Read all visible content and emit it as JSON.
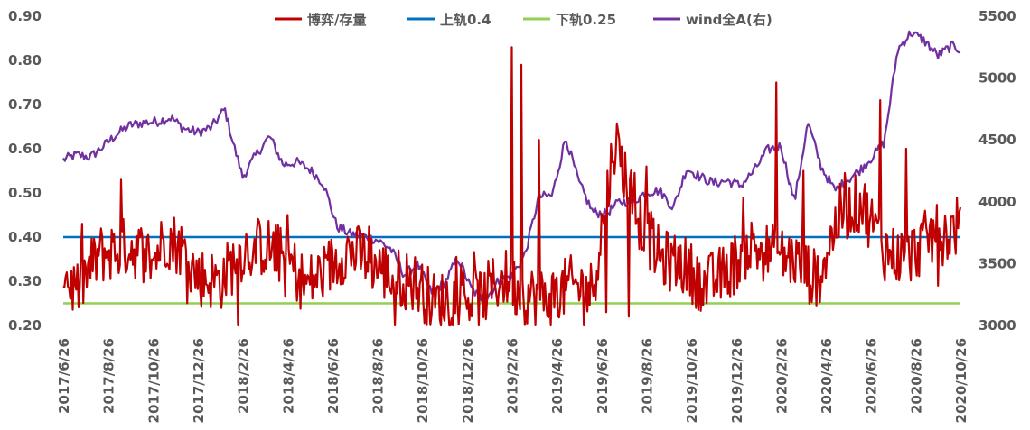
{
  "chart_data": {
    "type": "line",
    "title": "",
    "xlabel": "",
    "ylabel": "",
    "y2label": "",
    "ylim": [
      0.2,
      0.9
    ],
    "y2lim": [
      3000,
      5500
    ],
    "yticks": [
      "0.20",
      "0.30",
      "0.40",
      "0.50",
      "0.60",
      "0.70",
      "0.80",
      "0.90"
    ],
    "y2ticks": [
      "3000",
      "3500",
      "4000",
      "4500",
      "5000",
      "5500"
    ],
    "xticks": [
      "2017/6/26",
      "2017/8/26",
      "2017/10/26",
      "2017/12/26",
      "2018/2/26",
      "2018/4/26",
      "2018/6/26",
      "2018/8/26",
      "2018/10/26",
      "2018/12/26",
      "2019/2/26",
      "2019/4/26",
      "2019/6/26",
      "2019/8/26",
      "2019/10/26",
      "2019/12/26",
      "2020/2/26",
      "2020/4/26",
      "2020/6/26",
      "2020/8/26",
      "2020/10/26"
    ],
    "legend_position": "top",
    "grid": false,
    "series": [
      {
        "name": "博弈/存量",
        "axis": "left",
        "color": "#c00000",
        "style": "noisy",
        "x": [
          0,
          0.3,
          0.8,
          1.5,
          2,
          2.3,
          2.6,
          3,
          3.5,
          4,
          4.5,
          5,
          5.4,
          5.8,
          6.3,
          6.8,
          7.3,
          7.8,
          8.3,
          8.8,
          9.3,
          9.8,
          10.3,
          10.8,
          11.3,
          11.8,
          12.3,
          12.8,
          13.3,
          13.8,
          14.3,
          14.8,
          15.3,
          15.8,
          16.3,
          16.8,
          17.3,
          17.8,
          18.3,
          18.8,
          19.3,
          19.8,
          20
        ],
        "values": [
          0.31,
          0.28,
          0.36,
          0.38,
          0.35,
          0.4,
          0.38,
          0.31,
          0.3,
          0.37,
          0.38,
          0.35,
          0.29,
          0.32,
          0.37,
          0.35,
          0.31,
          0.3,
          0.25,
          0.27,
          0.26,
          0.31,
          0.27,
          0.26,
          0.29,
          0.28,
          0.62,
          0.45,
          0.35,
          0.34,
          0.29,
          0.32,
          0.38,
          0.36,
          0.35,
          0.3,
          0.45,
          0.48,
          0.37,
          0.35,
          0.4,
          0.41,
          0.44
        ],
        "extremes": [
          [
            0.04,
            0.31
          ],
          [
            1.3,
            0.53
          ],
          [
            3.9,
            0.2
          ],
          [
            5.0,
            0.45
          ],
          [
            7.4,
            0.2
          ],
          [
            10.0,
            0.83
          ],
          [
            10.2,
            0.79
          ],
          [
            10.6,
            0.62
          ],
          [
            12.1,
            0.23
          ],
          [
            12.6,
            0.22
          ],
          [
            13.0,
            0.56
          ],
          [
            15.9,
            0.75
          ],
          [
            16.5,
            0.55
          ],
          [
            18.2,
            0.71
          ],
          [
            18.8,
            0.6
          ],
          [
            19.5,
            0.29
          ],
          [
            19.95,
            0.42
          ]
        ],
        "noise": 0.07
      },
      {
        "name": "上轨0.4",
        "axis": "left",
        "color": "#0070c0",
        "x": [
          0,
          20
        ],
        "values": [
          0.4,
          0.4
        ]
      },
      {
        "name": "下轨0.25",
        "axis": "left",
        "color": "#92d050",
        "x": [
          0,
          20
        ],
        "values": [
          0.25,
          0.25
        ]
      },
      {
        "name": "wind全A(右)",
        "axis": "right",
        "color": "#7030a0",
        "style": "smooth",
        "x": [
          0,
          0.3,
          0.6,
          0.9,
          1.2,
          1.5,
          1.8,
          2.1,
          2.4,
          2.7,
          3.0,
          3.3,
          3.6,
          3.8,
          4.0,
          4.3,
          4.6,
          4.9,
          5.2,
          5.5,
          5.8,
          6.1,
          6.4,
          6.7,
          7.0,
          7.3,
          7.6,
          7.9,
          8.2,
          8.5,
          8.8,
          9.1,
          9.4,
          9.7,
          10.0,
          10.3,
          10.6,
          10.9,
          11.2,
          11.5,
          11.8,
          12.1,
          12.4,
          12.7,
          13.0,
          13.3,
          13.6,
          13.9,
          14.2,
          14.5,
          14.8,
          15.1,
          15.4,
          15.7,
          16.0,
          16.3,
          16.6,
          16.9,
          17.2,
          17.5,
          17.8,
          18.1,
          18.3,
          18.6,
          18.9,
          19.2,
          19.5,
          19.8,
          20
        ],
        "values": [
          4340,
          4380,
          4360,
          4450,
          4550,
          4620,
          4640,
          4650,
          4680,
          4590,
          4560,
          4600,
          4750,
          4460,
          4200,
          4380,
          4530,
          4300,
          4320,
          4260,
          4150,
          3800,
          3740,
          3720,
          3690,
          3620,
          3410,
          3490,
          3270,
          3340,
          3550,
          3290,
          3200,
          3360,
          3400,
          3580,
          4040,
          4050,
          4520,
          4150,
          3920,
          3900,
          4000,
          4000,
          4080,
          4090,
          3950,
          4270,
          4200,
          4150,
          4170,
          4130,
          4250,
          4420,
          4450,
          4000,
          4640,
          4280,
          4090,
          4180,
          4270,
          4390,
          4480,
          5230,
          5370,
          5300,
          5180,
          5260,
          5230
        ],
        "noise": 40
      }
    ]
  }
}
